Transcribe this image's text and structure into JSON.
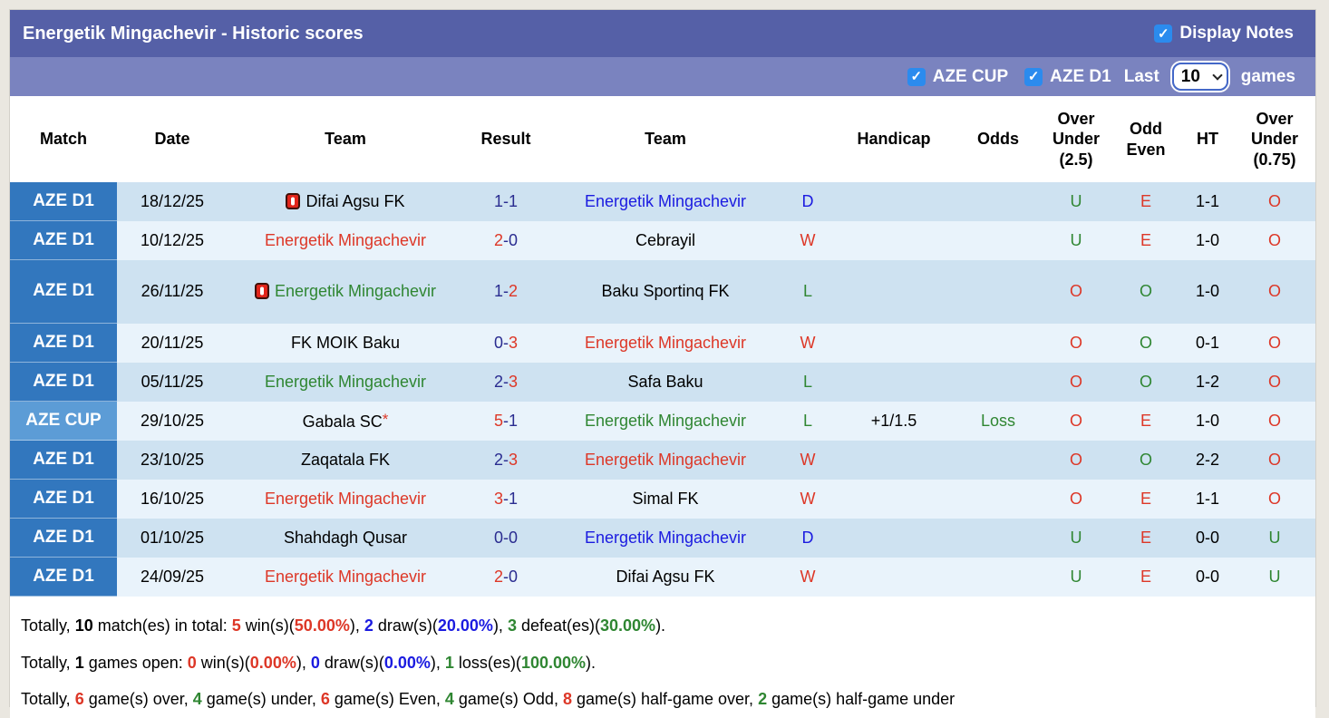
{
  "header": {
    "title": "Energetik Mingachevir - Historic scores",
    "display_notes_label": "Display Notes",
    "display_notes_checked": true,
    "filters": [
      {
        "label": "AZE CUP",
        "checked": true
      },
      {
        "label": "AZE D1",
        "checked": true
      }
    ],
    "last_label": "Last",
    "last_value": "10",
    "games_label": "games"
  },
  "table": {
    "columns": [
      "Match",
      "Date",
      "Team",
      "Result",
      "Team",
      "",
      "Handicap",
      "Odds",
      "Over\nUnder\n(2.5)",
      "Odd\nEven",
      "HT",
      "Over\nUnder\n(0.75)"
    ],
    "rows": [
      {
        "league": "AZE D1",
        "league_style": "d1",
        "date": "18/12/25",
        "team1": {
          "name": "Difai Agsu FK",
          "color": "black",
          "card": true,
          "star": false
        },
        "score": {
          "home": "1",
          "home_color": "navy",
          "away": "1",
          "away_color": "navy"
        },
        "team2": {
          "name": "Energetik Mingachevir",
          "color": "blue"
        },
        "wdl": {
          "t": "D",
          "c": "blue"
        },
        "handicap": "",
        "odds": {
          "t": "",
          "c": "green"
        },
        "ou25": {
          "t": "U",
          "c": "green"
        },
        "oddeven": {
          "t": "E",
          "c": "red"
        },
        "ht": "1-1",
        "ou075": {
          "t": "O",
          "c": "red"
        },
        "tall": false
      },
      {
        "league": "AZE D1",
        "league_style": "d1",
        "date": "10/12/25",
        "team1": {
          "name": "Energetik Mingachevir",
          "color": "red",
          "card": false,
          "star": false
        },
        "score": {
          "home": "2",
          "home_color": "red",
          "away": "0",
          "away_color": "navy"
        },
        "team2": {
          "name": "Cebrayil",
          "color": "black"
        },
        "wdl": {
          "t": "W",
          "c": "red"
        },
        "handicap": "",
        "odds": {
          "t": "",
          "c": "green"
        },
        "ou25": {
          "t": "U",
          "c": "green"
        },
        "oddeven": {
          "t": "E",
          "c": "red"
        },
        "ht": "1-0",
        "ou075": {
          "t": "O",
          "c": "red"
        },
        "tall": false
      },
      {
        "league": "AZE D1",
        "league_style": "d1",
        "date": "26/11/25",
        "team1": {
          "name": "Energetik Mingachevir",
          "color": "green",
          "card": true,
          "star": false
        },
        "score": {
          "home": "1",
          "home_color": "navy",
          "away": "2",
          "away_color": "red"
        },
        "team2": {
          "name": "Baku Sportinq FK",
          "color": "black"
        },
        "wdl": {
          "t": "L",
          "c": "green"
        },
        "handicap": "",
        "odds": {
          "t": "",
          "c": "green"
        },
        "ou25": {
          "t": "O",
          "c": "red"
        },
        "oddeven": {
          "t": "O",
          "c": "green"
        },
        "ht": "1-0",
        "ou075": {
          "t": "O",
          "c": "red"
        },
        "tall": true
      },
      {
        "league": "AZE D1",
        "league_style": "d1",
        "date": "20/11/25",
        "team1": {
          "name": "FK MOIK Baku",
          "color": "black",
          "card": false,
          "star": false
        },
        "score": {
          "home": "0",
          "home_color": "navy",
          "away": "3",
          "away_color": "red"
        },
        "team2": {
          "name": "Energetik Mingachevir",
          "color": "red"
        },
        "wdl": {
          "t": "W",
          "c": "red"
        },
        "handicap": "",
        "odds": {
          "t": "",
          "c": "green"
        },
        "ou25": {
          "t": "O",
          "c": "red"
        },
        "oddeven": {
          "t": "O",
          "c": "green"
        },
        "ht": "0-1",
        "ou075": {
          "t": "O",
          "c": "red"
        },
        "tall": false
      },
      {
        "league": "AZE D1",
        "league_style": "d1",
        "date": "05/11/25",
        "team1": {
          "name": "Energetik Mingachevir",
          "color": "green",
          "card": false,
          "star": false
        },
        "score": {
          "home": "2",
          "home_color": "navy",
          "away": "3",
          "away_color": "red"
        },
        "team2": {
          "name": "Safa Baku",
          "color": "black"
        },
        "wdl": {
          "t": "L",
          "c": "green"
        },
        "handicap": "",
        "odds": {
          "t": "",
          "c": "green"
        },
        "ou25": {
          "t": "O",
          "c": "red"
        },
        "oddeven": {
          "t": "O",
          "c": "green"
        },
        "ht": "1-2",
        "ou075": {
          "t": "O",
          "c": "red"
        },
        "tall": false
      },
      {
        "league": "AZE CUP",
        "league_style": "cup",
        "date": "29/10/25",
        "team1": {
          "name": "Gabala SC",
          "color": "black",
          "card": false,
          "star": true
        },
        "score": {
          "home": "5",
          "home_color": "red",
          "away": "1",
          "away_color": "navy"
        },
        "team2": {
          "name": "Energetik Mingachevir",
          "color": "green"
        },
        "wdl": {
          "t": "L",
          "c": "green"
        },
        "handicap": "+1/1.5",
        "odds": {
          "t": "Loss",
          "c": "green"
        },
        "ou25": {
          "t": "O",
          "c": "red"
        },
        "oddeven": {
          "t": "E",
          "c": "red"
        },
        "ht": "1-0",
        "ou075": {
          "t": "O",
          "c": "red"
        },
        "tall": false
      },
      {
        "league": "AZE D1",
        "league_style": "d1",
        "date": "23/10/25",
        "team1": {
          "name": "Zaqatala FK",
          "color": "black",
          "card": false,
          "star": false
        },
        "score": {
          "home": "2",
          "home_color": "navy",
          "away": "3",
          "away_color": "red"
        },
        "team2": {
          "name": "Energetik Mingachevir",
          "color": "red"
        },
        "wdl": {
          "t": "W",
          "c": "red"
        },
        "handicap": "",
        "odds": {
          "t": "",
          "c": "green"
        },
        "ou25": {
          "t": "O",
          "c": "red"
        },
        "oddeven": {
          "t": "O",
          "c": "green"
        },
        "ht": "2-2",
        "ou075": {
          "t": "O",
          "c": "red"
        },
        "tall": false
      },
      {
        "league": "AZE D1",
        "league_style": "d1",
        "date": "16/10/25",
        "team1": {
          "name": "Energetik Mingachevir",
          "color": "red",
          "card": false,
          "star": false
        },
        "score": {
          "home": "3",
          "home_color": "red",
          "away": "1",
          "away_color": "navy"
        },
        "team2": {
          "name": "Simal FK",
          "color": "black"
        },
        "wdl": {
          "t": "W",
          "c": "red"
        },
        "handicap": "",
        "odds": {
          "t": "",
          "c": "green"
        },
        "ou25": {
          "t": "O",
          "c": "red"
        },
        "oddeven": {
          "t": "E",
          "c": "red"
        },
        "ht": "1-1",
        "ou075": {
          "t": "O",
          "c": "red"
        },
        "tall": false
      },
      {
        "league": "AZE D1",
        "league_style": "d1",
        "date": "01/10/25",
        "team1": {
          "name": "Shahdagh Qusar",
          "color": "black",
          "card": false,
          "star": false
        },
        "score": {
          "home": "0",
          "home_color": "navy",
          "away": "0",
          "away_color": "navy"
        },
        "team2": {
          "name": "Energetik Mingachevir",
          "color": "blue"
        },
        "wdl": {
          "t": "D",
          "c": "blue"
        },
        "handicap": "",
        "odds": {
          "t": "",
          "c": "green"
        },
        "ou25": {
          "t": "U",
          "c": "green"
        },
        "oddeven": {
          "t": "E",
          "c": "red"
        },
        "ht": "0-0",
        "ou075": {
          "t": "U",
          "c": "green"
        },
        "tall": false
      },
      {
        "league": "AZE D1",
        "league_style": "d1",
        "date": "24/09/25",
        "team1": {
          "name": "Energetik Mingachevir",
          "color": "red",
          "card": false,
          "star": false
        },
        "score": {
          "home": "2",
          "home_color": "red",
          "away": "0",
          "away_color": "navy"
        },
        "team2": {
          "name": "Difai Agsu FK",
          "color": "black"
        },
        "wdl": {
          "t": "W",
          "c": "red"
        },
        "handicap": "",
        "odds": {
          "t": "",
          "c": "green"
        },
        "ou25": {
          "t": "U",
          "c": "green"
        },
        "oddeven": {
          "t": "E",
          "c": "red"
        },
        "ht": "0-0",
        "ou075": {
          "t": "U",
          "c": "green"
        },
        "tall": false
      }
    ]
  },
  "summary": {
    "lines": [
      [
        {
          "t": "Totally, "
        },
        {
          "t": "10",
          "b": true
        },
        {
          "t": " match(es) in total: "
        },
        {
          "t": "5",
          "c": "red",
          "b": true
        },
        {
          "t": " win(s)("
        },
        {
          "t": "50.00%",
          "c": "red",
          "b": true
        },
        {
          "t": "), "
        },
        {
          "t": "2",
          "c": "blue",
          "b": true
        },
        {
          "t": " draw(s)("
        },
        {
          "t": "20.00%",
          "c": "blue",
          "b": true
        },
        {
          "t": "), "
        },
        {
          "t": "3",
          "c": "green",
          "b": true
        },
        {
          "t": " defeat(es)("
        },
        {
          "t": "30.00%",
          "c": "green",
          "b": true
        },
        {
          "t": ")."
        }
      ],
      [
        {
          "t": "Totally, "
        },
        {
          "t": "1",
          "b": true
        },
        {
          "t": " games open: "
        },
        {
          "t": "0",
          "c": "red",
          "b": true
        },
        {
          "t": " win(s)("
        },
        {
          "t": "0.00%",
          "c": "red",
          "b": true
        },
        {
          "t": "), "
        },
        {
          "t": "0",
          "c": "blue",
          "b": true
        },
        {
          "t": " draw(s)("
        },
        {
          "t": "0.00%",
          "c": "blue",
          "b": true
        },
        {
          "t": "), "
        },
        {
          "t": "1",
          "c": "green",
          "b": true
        },
        {
          "t": " loss(es)("
        },
        {
          "t": "100.00%",
          "c": "green",
          "b": true
        },
        {
          "t": ")."
        }
      ],
      [
        {
          "t": "Totally, "
        },
        {
          "t": "6",
          "c": "red",
          "b": true
        },
        {
          "t": " game(s) over, "
        },
        {
          "t": "4",
          "c": "green",
          "b": true
        },
        {
          "t": " game(s) under, "
        },
        {
          "t": "6",
          "c": "red",
          "b": true
        },
        {
          "t": " game(s) Even, "
        },
        {
          "t": "4",
          "c": "green",
          "b": true
        },
        {
          "t": " game(s) Odd, "
        },
        {
          "t": "8",
          "c": "red",
          "b": true
        },
        {
          "t": " game(s) half-game over, "
        },
        {
          "t": "2",
          "c": "green",
          "b": true
        },
        {
          "t": " game(s) half-game under"
        }
      ]
    ]
  }
}
